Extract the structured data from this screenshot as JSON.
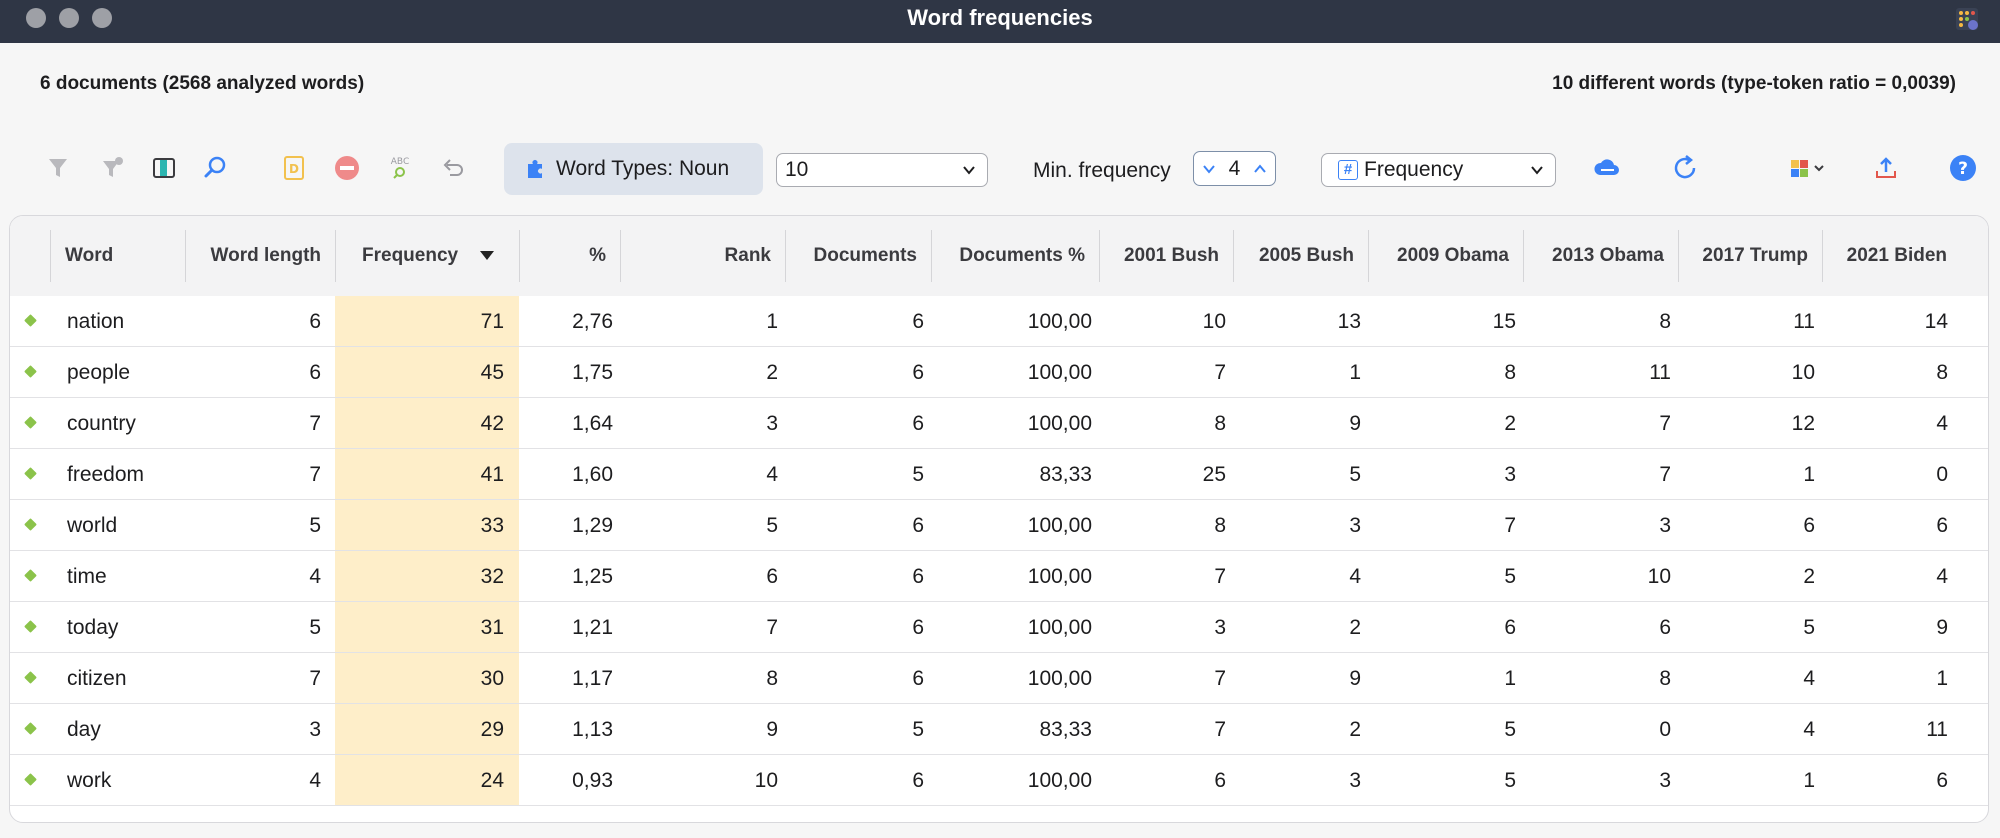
{
  "window": {
    "title": "Word frequencies"
  },
  "summary": {
    "left": "6 documents  (2568 analyzed words)",
    "right": "10 different words (type-token ratio = 0,0039)"
  },
  "toolbar": {
    "word_types_label": "Word Types: Noun",
    "limit_value": "10",
    "min_frequency_label": "Min. frequency",
    "min_frequency_value": "4",
    "sort_value": "Frequency",
    "icons": [
      "filter-icon",
      "filter-clear-icon",
      "columns-icon",
      "search-icon",
      "document-icon",
      "remove-icon",
      "spellcheck-icon",
      "undo-icon",
      "cloud-icon",
      "refresh-icon",
      "color-grid-icon",
      "export-icon",
      "help-icon"
    ]
  },
  "colors": {
    "accent": "#3b82f6",
    "frequency_highlight": "#feeec9",
    "titlebar": "#2f3645",
    "row_marker": "#8bc34a"
  },
  "table": {
    "columns": [
      "Word",
      "Word length",
      "Frequency",
      "%",
      "Rank",
      "Documents",
      "Documents %",
      "2001 Bush",
      "2005 Bush",
      "2009 Obama",
      "2013 Obama",
      "2017 Trump",
      "2021 Biden"
    ],
    "sorted_column": "Frequency",
    "rows": [
      [
        "nation",
        "6",
        "71",
        "2,76",
        "1",
        "6",
        "100,00",
        "10",
        "13",
        "15",
        "8",
        "11",
        "14"
      ],
      [
        "people",
        "6",
        "45",
        "1,75",
        "2",
        "6",
        "100,00",
        "7",
        "1",
        "8",
        "11",
        "10",
        "8"
      ],
      [
        "country",
        "7",
        "42",
        "1,64",
        "3",
        "6",
        "100,00",
        "8",
        "9",
        "2",
        "7",
        "12",
        "4"
      ],
      [
        "freedom",
        "7",
        "41",
        "1,60",
        "4",
        "5",
        "83,33",
        "25",
        "5",
        "3",
        "7",
        "1",
        "0"
      ],
      [
        "world",
        "5",
        "33",
        "1,29",
        "5",
        "6",
        "100,00",
        "8",
        "3",
        "7",
        "3",
        "6",
        "6"
      ],
      [
        "time",
        "4",
        "32",
        "1,25",
        "6",
        "6",
        "100,00",
        "7",
        "4",
        "5",
        "10",
        "2",
        "4"
      ],
      [
        "today",
        "5",
        "31",
        "1,21",
        "7",
        "6",
        "100,00",
        "3",
        "2",
        "6",
        "6",
        "5",
        "9"
      ],
      [
        "citizen",
        "7",
        "30",
        "1,17",
        "8",
        "6",
        "100,00",
        "7",
        "9",
        "1",
        "8",
        "4",
        "1"
      ],
      [
        "day",
        "3",
        "29",
        "1,13",
        "9",
        "5",
        "83,33",
        "7",
        "2",
        "5",
        "0",
        "4",
        "11"
      ],
      [
        "work",
        "4",
        "24",
        "0,93",
        "10",
        "6",
        "100,00",
        "6",
        "3",
        "5",
        "3",
        "1",
        "6"
      ]
    ]
  }
}
